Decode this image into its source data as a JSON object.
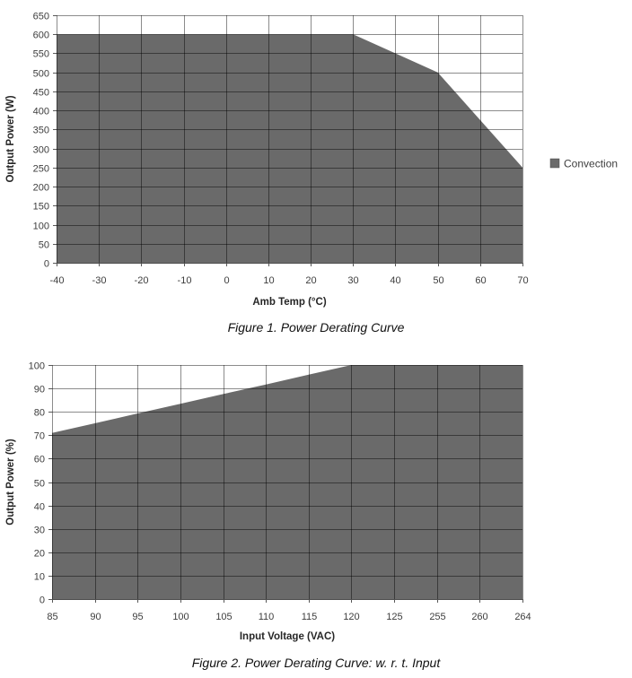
{
  "page": {
    "background_color": "#ffffff",
    "accent_gray": "#6a6a6a"
  },
  "chart_data": [
    {
      "type": "area",
      "title": "",
      "caption": "Figure 1. Power Derating Curve",
      "xlabel": "Amb Temp (°C)",
      "ylabel": "Output Power (W)",
      "ylim": [
        0,
        650
      ],
      "ytick_step": 50,
      "grid": true,
      "legend_position": "right",
      "fill_color": "#6a6a6a",
      "categories": [
        "-40",
        "-30",
        "-20",
        "-10",
        "0",
        "10",
        "20",
        "30",
        "40",
        "50",
        "60",
        "70"
      ],
      "series": [
        {
          "name": "Convection",
          "values": [
            600,
            600,
            600,
            600,
            600,
            600,
            600,
            600,
            550,
            500,
            375,
            250
          ]
        }
      ]
    },
    {
      "type": "area",
      "title": "",
      "caption": "Figure 2. Power Derating Curve: w. r. t. Input",
      "xlabel": "Input Voltage (VAC)",
      "ylabel": "Output Power (%)",
      "ylim": [
        0,
        100
      ],
      "ytick_step": 10,
      "grid": true,
      "legend_position": "none",
      "fill_color": "#6a6a6a",
      "categories": [
        "85",
        "90",
        "95",
        "100",
        "105",
        "110",
        "115",
        "120",
        "125",
        "255",
        "260",
        "264"
      ],
      "series": [
        {
          "name": "Convection",
          "values": [
            71,
            75.1,
            79.3,
            83.4,
            87.6,
            91.7,
            95.9,
            100,
            100,
            100,
            100,
            100
          ]
        }
      ]
    }
  ]
}
